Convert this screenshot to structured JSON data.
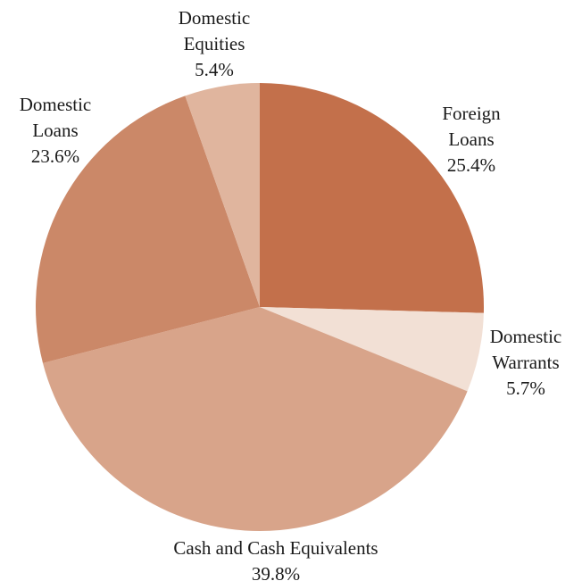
{
  "chart_data": {
    "type": "pie",
    "title": "",
    "start_angle_deg": 0,
    "direction": "clockwise",
    "slices": [
      {
        "label_lines": [
          "Foreign",
          "Loans"
        ],
        "value": 25.4,
        "value_label": "25.4%",
        "color": "#c3704b"
      },
      {
        "label_lines": [
          "Domestic",
          "Warrants"
        ],
        "value": 5.7,
        "value_label": "5.7%",
        "color": "#f2e0d5"
      },
      {
        "label_lines": [
          "Cash and Cash Equivalents"
        ],
        "value": 39.8,
        "value_label": "39.8%",
        "color": "#d8a48a"
      },
      {
        "label_lines": [
          "Domestic",
          "Loans"
        ],
        "value": 23.6,
        "value_label": "23.6%",
        "color": "#cb8868"
      },
      {
        "label_lines": [
          "Domestic",
          "Equities"
        ],
        "value": 5.4,
        "value_label": "5.4%",
        "color": "#e0b59e"
      }
    ]
  }
}
